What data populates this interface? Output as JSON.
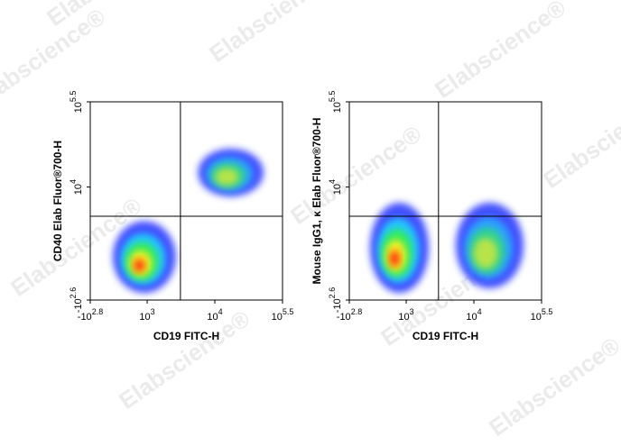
{
  "watermark": "Elabscience®",
  "chart_data": [
    {
      "type": "density",
      "xlabel": "CD19 FITC-H",
      "ylabel": "CD40 Elab Fluor®700-H",
      "xlim": [
        -630.957,
        316227.77
      ],
      "ylim": [
        -398.107,
        316227.77
      ],
      "xticks": [
        {
          "value": -630.957,
          "label": "-10",
          "exp": "2.8"
        },
        {
          "value": 1000,
          "label": "10",
          "exp": "3"
        },
        {
          "value": 10000,
          "label": "10",
          "exp": "4"
        },
        {
          "value": 316227.77,
          "label": "10",
          "exp": "5.5"
        }
      ],
      "yticks": [
        {
          "value": -398.107,
          "label": "-10",
          "exp": "2.6"
        },
        {
          "value": 10000,
          "label": "10",
          "exp": "4"
        },
        {
          "value": 316227.77,
          "label": "10",
          "exp": "5.5"
        }
      ],
      "gate": {
        "x": 3100,
        "y": 138
      },
      "populations": [
        {
          "x": [
            -1.7,
            2650
          ],
          "y": [
            -138,
            68
          ]
        },
        {
          "x": [
            5650,
            120000
          ],
          "y": [
            2500,
            47400
          ]
        }
      ]
    },
    {
      "type": "density",
      "xlabel": "CD19 FITC-H",
      "ylabel": "Mouse IgG1, κ  Elab Fluor®700-H",
      "xlim": [
        -630.957,
        316227.77
      ],
      "ylim": [
        -398.107,
        316227.77
      ],
      "xticks": [
        {
          "value": -630.957,
          "label": "-10",
          "exp": "2.8"
        },
        {
          "value": 1000,
          "label": "10",
          "exp": "3"
        },
        {
          "value": 10000,
          "label": "10",
          "exp": "4"
        },
        {
          "value": 316227.77,
          "label": "10",
          "exp": "5.5"
        }
      ],
      "yticks": [
        {
          "value": -398.107,
          "label": "-10",
          "exp": "2.6"
        },
        {
          "value": 10000,
          "label": "10",
          "exp": "4"
        },
        {
          "value": 316227.77,
          "label": "10",
          "exp": "5.5"
        }
      ],
      "gate": {
        "x": 3000,
        "y": 138
      },
      "populations": [
        {
          "x": [
            -2.9,
            2150
          ],
          "y": [
            -138,
            1000
          ]
        },
        {
          "x": [
            5400,
            126000
          ],
          "y": [
            -71,
            1000
          ]
        }
      ]
    }
  ]
}
